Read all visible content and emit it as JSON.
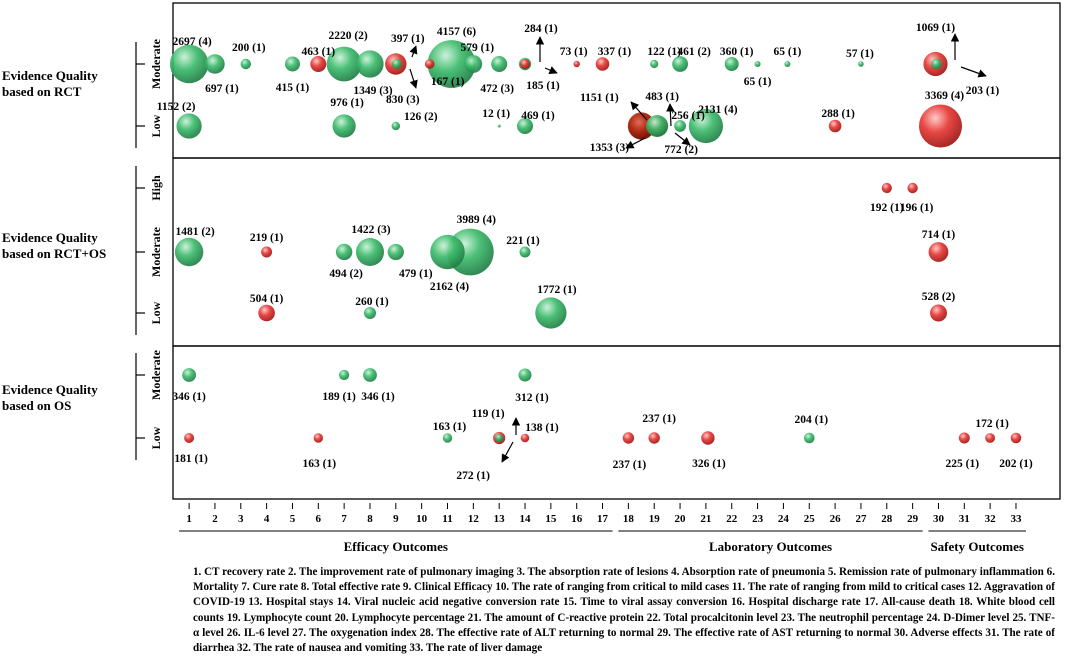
{
  "chart_data": {
    "type": "bubble",
    "title": "",
    "colors": {
      "positive": "#3dbb6c",
      "negative": "#e53935",
      "positive_dark": "#1e7a43",
      "negative_dark": "#9a1212"
    },
    "panels": [
      {
        "key": "rct",
        "label_lines": [
          "Evidence  Quality",
          "based on RCT"
        ],
        "levels": [
          "Moderate",
          "Low"
        ]
      },
      {
        "key": "rctos",
        "label_lines": [
          "Evidence  Quality",
          "based on RCT+OS"
        ],
        "levels": [
          "High",
          "Moderate",
          "Low"
        ]
      },
      {
        "key": "os",
        "label_lines": [
          "Evidence  Quality",
          "based on OS"
        ],
        "levels": [
          "Moderate",
          "Low"
        ]
      }
    ],
    "x_ticks": [
      "1",
      "2",
      "3",
      "4",
      "5",
      "6",
      "7",
      "8",
      "9",
      "10",
      "11",
      "12",
      "13",
      "14",
      "15",
      "16",
      "17",
      "18",
      "19",
      "20",
      "21",
      "22",
      "23",
      "24",
      "25",
      "26",
      "27",
      "28",
      "29",
      "30",
      "31",
      "32",
      "33"
    ],
    "x_groups": [
      {
        "label": "Efficacy Outcomes",
        "range": [
          1,
          17
        ]
      },
      {
        "label": "Laboratory Outcomes",
        "range": [
          18,
          29
        ]
      },
      {
        "label": "Safety Outcomes",
        "range": [
          30,
          33
        ]
      }
    ],
    "points": [
      {
        "panel": "rct",
        "level": "Moderate",
        "x": 1,
        "n": 2697,
        "k": 4,
        "color": "green"
      },
      {
        "panel": "rct",
        "level": "Moderate",
        "x": 2,
        "n": 697,
        "k": 1,
        "color": "green"
      },
      {
        "panel": "rct",
        "level": "Moderate",
        "x": 3,
        "n": 200,
        "k": 1,
        "color": "green"
      },
      {
        "panel": "rct",
        "level": "Moderate",
        "x": 5,
        "n": 415,
        "k": 1,
        "color": "green"
      },
      {
        "panel": "rct",
        "level": "Moderate",
        "x": 6,
        "n": 463,
        "k": 1,
        "color": "red"
      },
      {
        "panel": "rct",
        "level": "Moderate",
        "x": 7,
        "n": 2220,
        "k": 2,
        "color": "green"
      },
      {
        "panel": "rct",
        "level": "Moderate",
        "x": 8,
        "n": 1349,
        "k": 3,
        "color": "green"
      },
      {
        "panel": "rct",
        "level": "Moderate",
        "x": 9,
        "n": 830,
        "k": 3,
        "color": "red"
      },
      {
        "panel": "rct",
        "level": "Moderate",
        "x": 9,
        "n": 397,
        "k": 1,
        "color": "green"
      },
      {
        "panel": "rct",
        "level": "Moderate",
        "x": 10,
        "n": 167,
        "k": 1,
        "color": "red"
      },
      {
        "panel": "rct",
        "level": "Moderate",
        "x": 11,
        "n": 4157,
        "k": 6,
        "color": "green"
      },
      {
        "panel": "rct",
        "level": "Moderate",
        "x": 12,
        "n": 579,
        "k": 1,
        "color": "green"
      },
      {
        "panel": "rct",
        "level": "Moderate",
        "x": 13,
        "n": 472,
        "k": 3,
        "color": "green"
      },
      {
        "panel": "rct",
        "level": "Moderate",
        "x": 14,
        "n": 284,
        "k": 1,
        "color": "green"
      },
      {
        "panel": "rct",
        "level": "Moderate",
        "x": 14,
        "n": 185,
        "k": 1,
        "color": "red"
      },
      {
        "panel": "rct",
        "level": "Moderate",
        "x": 16,
        "n": 73,
        "k": 1,
        "color": "red"
      },
      {
        "panel": "rct",
        "level": "Moderate",
        "x": 17,
        "n": 337,
        "k": 1,
        "color": "red"
      },
      {
        "panel": "rct",
        "level": "Moderate",
        "x": 19,
        "n": 122,
        "k": 1,
        "color": "green"
      },
      {
        "panel": "rct",
        "level": "Moderate",
        "x": 20,
        "n": 461,
        "k": 2,
        "color": "green"
      },
      {
        "panel": "rct",
        "level": "Moderate",
        "x": 22,
        "n": 360,
        "k": 1,
        "color": "green"
      },
      {
        "panel": "rct",
        "level": "Moderate",
        "x": 23,
        "n": 65,
        "k": 1,
        "color": "green"
      },
      {
        "panel": "rct",
        "level": "Moderate",
        "x": 24,
        "n": 65,
        "k": 1,
        "color": "green"
      },
      {
        "panel": "rct",
        "level": "Moderate",
        "x": 27,
        "n": 57,
        "k": 1,
        "color": "green"
      },
      {
        "panel": "rct",
        "level": "Moderate",
        "x": 30,
        "n": 1069,
        "k": 1,
        "color": "red"
      },
      {
        "panel": "rct",
        "level": "Moderate",
        "x": 30,
        "n": 203,
        "k": 1,
        "color": "green"
      },
      {
        "panel": "rct",
        "level": "Low",
        "x": 1,
        "n": 1152,
        "k": 2,
        "color": "green"
      },
      {
        "panel": "rct",
        "level": "Low",
        "x": 7,
        "n": 976,
        "k": 1,
        "color": "green"
      },
      {
        "panel": "rct",
        "level": "Low",
        "x": 9,
        "n": 126,
        "k": 2,
        "color": "green"
      },
      {
        "panel": "rct",
        "level": "Low",
        "x": 13,
        "n": 12,
        "k": 1,
        "color": "green"
      },
      {
        "panel": "rct",
        "level": "Low",
        "x": 14,
        "n": 469,
        "k": 1,
        "color": "green"
      },
      {
        "panel": "rct",
        "level": "Low",
        "x": 18,
        "n": 1353,
        "k": 3,
        "color": "red"
      },
      {
        "panel": "rct",
        "level": "Low",
        "x": 18,
        "n": 1151,
        "k": 1,
        "color": "red"
      },
      {
        "panel": "rct",
        "level": "Low",
        "x": 19,
        "n": 772,
        "k": 2,
        "color": "red"
      },
      {
        "panel": "rct",
        "level": "Low",
        "x": 19,
        "n": 483,
        "k": 1,
        "color": "green"
      },
      {
        "panel": "rct",
        "level": "Low",
        "x": 20,
        "n": 256,
        "k": 1,
        "color": "green"
      },
      {
        "panel": "rct",
        "level": "Low",
        "x": 21,
        "n": 2131,
        "k": 4,
        "color": "green"
      },
      {
        "panel": "rct",
        "level": "Low",
        "x": 26,
        "n": 288,
        "k": 1,
        "color": "red"
      },
      {
        "panel": "rct",
        "level": "Low",
        "x": 30,
        "n": 3369,
        "k": 4,
        "color": "red"
      },
      {
        "panel": "rctos",
        "level": "High",
        "x": 28,
        "n": 192,
        "k": 1,
        "color": "red"
      },
      {
        "panel": "rctos",
        "level": "High",
        "x": 29,
        "n": 196,
        "k": 1,
        "color": "red"
      },
      {
        "panel": "rctos",
        "level": "Moderate",
        "x": 1,
        "n": 1481,
        "k": 2,
        "color": "green"
      },
      {
        "panel": "rctos",
        "level": "Moderate",
        "x": 4,
        "n": 219,
        "k": 1,
        "color": "red"
      },
      {
        "panel": "rctos",
        "level": "Moderate",
        "x": 7,
        "n": 494,
        "k": 2,
        "color": "green"
      },
      {
        "panel": "rctos",
        "level": "Moderate",
        "x": 8,
        "n": 1422,
        "k": 3,
        "color": "green"
      },
      {
        "panel": "rctos",
        "level": "Moderate",
        "x": 9,
        "n": 479,
        "k": 1,
        "color": "green"
      },
      {
        "panel": "rctos",
        "level": "Moderate",
        "x": 11,
        "n": 2162,
        "k": 4,
        "color": "green"
      },
      {
        "panel": "rctos",
        "level": "Moderate",
        "x": 12,
        "n": 3989,
        "k": 4,
        "color": "green"
      },
      {
        "panel": "rctos",
        "level": "Moderate",
        "x": 14,
        "n": 221,
        "k": 1,
        "color": "green"
      },
      {
        "panel": "rctos",
        "level": "Moderate",
        "x": 30,
        "n": 714,
        "k": 1,
        "color": "red"
      },
      {
        "panel": "rctos",
        "level": "Low",
        "x": 4,
        "n": 504,
        "k": 1,
        "color": "red"
      },
      {
        "panel": "rctos",
        "level": "Low",
        "x": 8,
        "n": 260,
        "k": 1,
        "color": "green"
      },
      {
        "panel": "rctos",
        "level": "Low",
        "x": 15,
        "n": 1772,
        "k": 1,
        "color": "green"
      },
      {
        "panel": "rctos",
        "level": "Low",
        "x": 30,
        "n": 528,
        "k": 2,
        "color": "red"
      },
      {
        "panel": "os",
        "level": "Moderate",
        "x": 1,
        "n": 346,
        "k": 1,
        "color": "green"
      },
      {
        "panel": "os",
        "level": "Moderate",
        "x": 7,
        "n": 189,
        "k": 1,
        "color": "green"
      },
      {
        "panel": "os",
        "level": "Moderate",
        "x": 8,
        "n": 346,
        "k": 1,
        "color": "green"
      },
      {
        "panel": "os",
        "level": "Moderate",
        "x": 14,
        "n": 312,
        "k": 1,
        "color": "green"
      },
      {
        "panel": "os",
        "level": "Low",
        "x": 1,
        "n": 181,
        "k": 1,
        "color": "red"
      },
      {
        "panel": "os",
        "level": "Low",
        "x": 6,
        "n": 163,
        "k": 1,
        "color": "red"
      },
      {
        "panel": "os",
        "level": "Low",
        "x": 11,
        "n": 163,
        "k": 1,
        "color": "green"
      },
      {
        "panel": "os",
        "level": "Low",
        "x": 13,
        "n": 119,
        "k": 1,
        "color": "green"
      },
      {
        "panel": "os",
        "level": "Low",
        "x": 13,
        "n": 272,
        "k": 1,
        "color": "red"
      },
      {
        "panel": "os",
        "level": "Low",
        "x": 14,
        "n": 138,
        "k": 1,
        "color": "red"
      },
      {
        "panel": "os",
        "level": "Low",
        "x": 18,
        "n": 237,
        "k": 1,
        "color": "red"
      },
      {
        "panel": "os",
        "level": "Low",
        "x": 19,
        "n": 237,
        "k": 1,
        "color": "red"
      },
      {
        "panel": "os",
        "level": "Low",
        "x": 21,
        "n": 326,
        "k": 1,
        "color": "red"
      },
      {
        "panel": "os",
        "level": "Low",
        "x": 25,
        "n": 204,
        "k": 1,
        "color": "green"
      },
      {
        "panel": "os",
        "level": "Low",
        "x": 31,
        "n": 225,
        "k": 1,
        "color": "red"
      },
      {
        "panel": "os",
        "level": "Low",
        "x": 32,
        "n": 172,
        "k": 1,
        "color": "red"
      },
      {
        "panel": "os",
        "level": "Low",
        "x": 33,
        "n": 202,
        "k": 1,
        "color": "red"
      }
    ]
  },
  "caption": "1. CT recovery rate 2. The improvement rate of pulmonary imaging 3. The absorption rate of lesions 4. Absorption rate of pneumonia 5. Remission rate of pulmonary inflammation 6. Mortality 7. Cure rate 8. Total effective rate 9. Clinical Efficacy 10. The rate of ranging from critical to mild cases 11. The rate of ranging from mild to critical cases 12. Aggravation of COVID-19 13. Hospital stays 14. Viral nucleic acid negative conversion rate 15. Time to viral assay conversion 16. Hospital discharge rate 17. All-cause death 18. White blood cell counts 19. Lymphocyte count 20. Lymphocyte percentage 21. The amount of C-reactive protein 22. Total procalcitonin level 23. The neutrophil percentage 24. D-Dimer level 25. TNF-α level 26. IL-6 level 27. The oxygenation index 28. The effective rate of ALT returning to normal 29. The effective rate of AST returning to normal 30. Adverse effects 31. The rate of diarrhea 32. The rate of nausea and vomiting 33. The rate of liver damage"
}
